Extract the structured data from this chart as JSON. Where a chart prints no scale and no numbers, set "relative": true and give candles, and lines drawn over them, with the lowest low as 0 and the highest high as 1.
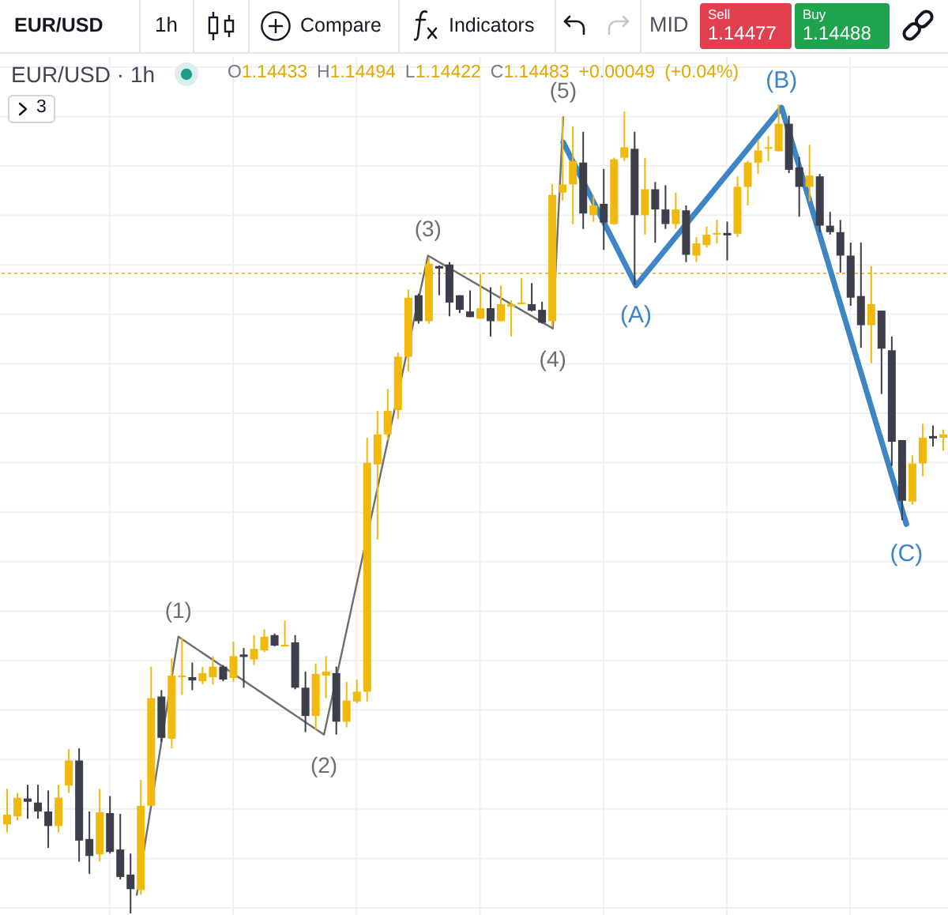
{
  "chart_data": {
    "type": "candlestick",
    "title": "EUR/USD · 1h",
    "subtitle": "O1.14433 H1.14494 L1.14422 C1.14483 +0.00049 (+0.04%)",
    "annotations": [
      "EUR/USD",
      "1h",
      "Compare",
      "Indicators",
      "MID",
      "Sell",
      "1.14477",
      "Buy",
      "1.14488",
      "3",
      {
        "text": "(1)",
        "y": 0.342
      },
      {
        "text": "(2)",
        "y": 0.221
      },
      {
        "text": "(3)",
        "y": 0.813
      },
      {
        "text": "(4)",
        "y": 0.723
      },
      {
        "text": "(5)",
        "y": 0.984
      },
      {
        "text": "(A)",
        "y": 0.776
      },
      {
        "text": "(B)",
        "y": 0.996
      },
      {
        "text": "(C)",
        "y": 0.481
      }
    ],
    "relative": true,
    "grid": true,
    "tick_labels": false,
    "categories": [
      null,
      null,
      null,
      null,
      null,
      null,
      null,
      null,
      null,
      null,
      null,
      null,
      null,
      null,
      null,
      null,
      null,
      null,
      null,
      null,
      null,
      null,
      null,
      null,
      null,
      null,
      null,
      null,
      null,
      null,
      null,
      null,
      null,
      null,
      null,
      null,
      null,
      null,
      null,
      null,
      null,
      null,
      null,
      null,
      null,
      null,
      null,
      null,
      null,
      null,
      null,
      null,
      null,
      null,
      null,
      null,
      null,
      null,
      null,
      null,
      null,
      null,
      null,
      null,
      null,
      null,
      null,
      null,
      null,
      null,
      null,
      null,
      null,
      null,
      null,
      null,
      null,
      null,
      null,
      null,
      null,
      null,
      null,
      null,
      null,
      null,
      null,
      null,
      null,
      null,
      null,
      null
    ],
    "ohlc": [
      [
        0.11,
        0.154,
        0.1,
        0.122
      ],
      [
        0.12,
        0.149,
        0.115,
        0.143
      ],
      [
        0.142,
        0.159,
        0.117,
        0.138
      ],
      [
        0.137,
        0.159,
        0.117,
        0.126
      ],
      [
        0.126,
        0.152,
        0.081,
        0.108
      ],
      [
        0.108,
        0.159,
        0.1,
        0.143
      ],
      [
        0.158,
        0.203,
        0.149,
        0.189
      ],
      [
        0.189,
        0.204,
        0.064,
        0.09
      ],
      [
        0.092,
        0.126,
        0.049,
        0.071
      ],
      [
        0.073,
        0.154,
        0.064,
        0.125
      ],
      [
        0.124,
        0.145,
        0.074,
        0.076
      ],
      [
        0.079,
        0.123,
        0.042,
        0.045
      ],
      [
        0.048,
        0.074,
        0,
        0.03
      ],
      [
        0.029,
        0.165,
        0.023,
        0.133
      ],
      [
        0.133,
        0.305,
        0.133,
        0.266
      ],
      [
        0.268,
        0.276,
        0.212,
        0.217
      ],
      [
        0.216,
        0.315,
        0.204,
        0.294
      ],
      [
        0.292,
        0.341,
        0.27,
        0.294
      ],
      [
        0.292,
        0.31,
        0.276,
        0.288
      ],
      [
        0.287,
        0.305,
        0.283,
        0.297
      ],
      [
        0.292,
        0.318,
        0.283,
        0.305
      ],
      [
        0.305,
        0.307,
        0.287,
        0.289
      ],
      [
        0.291,
        0.336,
        0.286,
        0.318
      ],
      [
        0.32,
        0.328,
        0.279,
        0.317
      ],
      [
        0.314,
        0.344,
        0.307,
        0.327
      ],
      [
        0.325,
        0.351,
        0.323,
        0.342
      ],
      [
        0.344,
        0.346,
        0.33,
        0.331
      ],
      [
        0.33,
        0.362,
        0.33,
        0.332
      ],
      [
        0.335,
        0.344,
        0.277,
        0.279
      ],
      [
        0.279,
        0.299,
        0.224,
        0.244
      ],
      [
        0.244,
        0.309,
        0.227,
        0.296
      ],
      [
        0.294,
        0.318,
        0.266,
        0.299
      ],
      [
        0.297,
        0.305,
        0.221,
        0.237
      ],
      [
        0.237,
        0.286,
        0.23,
        0.263
      ],
      [
        0.262,
        0.289,
        0.26,
        0.274
      ],
      [
        0.274,
        0.588,
        0.262,
        0.557
      ],
      [
        0.555,
        0.621,
        0.462,
        0.592
      ],
      [
        0.592,
        0.648,
        0.585,
        0.621
      ],
      [
        0.622,
        0.693,
        0.611,
        0.688
      ],
      [
        0.688,
        0.771,
        0.67,
        0.761
      ],
      [
        0.764,
        0.766,
        0.729,
        0.732
      ],
      [
        0.732,
        0.81,
        0.729,
        0.803
      ],
      [
        0.8,
        0.801,
        0.764,
        0.797
      ],
      [
        0.802,
        0.805,
        0.738,
        0.755
      ],
      [
        0.764,
        0.764,
        0.742,
        0.746
      ],
      [
        0.744,
        0.77,
        0.737,
        0.737
      ],
      [
        0.735,
        0.79,
        0.735,
        0.748
      ],
      [
        0.748,
        0.774,
        0.713,
        0.732
      ],
      [
        0.732,
        0.776,
        0.732,
        0.753
      ],
      [
        0.75,
        0.758,
        0.713,
        0.753
      ],
      [
        0.753,
        0.785,
        0.753,
        0.755
      ],
      [
        0.753,
        0.779,
        0.744,
        0.745
      ],
      [
        0.746,
        0.756,
        0.729,
        0.73
      ],
      [
        0.732,
        0.901,
        0.725,
        0.888
      ],
      [
        0.891,
        0.984,
        0.881,
        0.901
      ],
      [
        0.901,
        0.973,
        0.852,
        0.93
      ],
      [
        0.928,
        0.966,
        0.846,
        0.865
      ],
      [
        0.863,
        0.888,
        0.855,
        0.875
      ],
      [
        0.877,
        0.92,
        0.82,
        0.854
      ],
      [
        0.852,
        0.934,
        0.851,
        0.932
      ],
      [
        0.934,
        0.991,
        0.93,
        0.947
      ],
      [
        0.945,
        0.966,
        0.777,
        0.863
      ],
      [
        0.863,
        0.934,
        0.839,
        0.895
      ],
      [
        0.895,
        0.904,
        0.829,
        0.87
      ],
      [
        0.87,
        0.9,
        0.846,
        0.852
      ],
      [
        0.852,
        0.891,
        0.846,
        0.87
      ],
      [
        0.869,
        0.875,
        0.805,
        0.814
      ],
      [
        0.813,
        0.836,
        0.805,
        0.828
      ],
      [
        0.826,
        0.849,
        0.823,
        0.839
      ],
      [
        0.839,
        0.857,
        0.828,
        0.841
      ],
      [
        0.841,
        0.855,
        0.807,
        0.838
      ],
      [
        0.84,
        0.911,
        0.836,
        0.898
      ],
      [
        0.898,
        0.93,
        0.875,
        0.928
      ],
      [
        0.928,
        0.956,
        0.914,
        0.943
      ],
      [
        0.946,
        0.961,
        0.93,
        0.947
      ],
      [
        0.942,
        1,
        0.942,
        0.976
      ],
      [
        0.976,
        0.986,
        0.915,
        0.919
      ],
      [
        0.922,
        0.935,
        0.861,
        0.898
      ],
      [
        0.898,
        0.95,
        0.88,
        0.912
      ],
      [
        0.911,
        0.914,
        0.842,
        0.85
      ],
      [
        0.85,
        0.867,
        0.839,
        0.842
      ],
      [
        0.842,
        0.857,
        0.792,
        0.813
      ],
      [
        0.813,
        0.829,
        0.751,
        0.761
      ],
      [
        0.763,
        0.829,
        0.699,
        0.727
      ],
      [
        0.727,
        0.8,
        0.68,
        0.753
      ],
      [
        0.745,
        0.745,
        0.642,
        0.698
      ],
      [
        0.696,
        0.713,
        0.553,
        0.583
      ],
      [
        0.585,
        0.585,
        0.486,
        0.51
      ],
      [
        0.509,
        0.566,
        0.505,
        0.556
      ],
      [
        0.556,
        0.605,
        0.54,
        0.588
      ],
      [
        0.59,
        0.603,
        0.577,
        0.587
      ],
      [
        0.588,
        0.598,
        0.572,
        0.592
      ]
    ],
    "colors": [
      "#f0b90b",
      "#f0b90b",
      "#3c3f4a",
      "#3c3f4a",
      "#3c3f4a",
      "#f0b90b",
      "#f0b90b",
      "#3c3f4a",
      "#3c3f4a",
      "#f0b90b",
      "#3c3f4a",
      "#3c3f4a",
      "#3c3f4a",
      "#f0b90b",
      "#f0b90b",
      "#3c3f4a",
      "#f0b90b",
      "#f0b90b",
      "#3c3f4a",
      "#f0b90b",
      "#f0b90b",
      "#3c3f4a",
      "#f0b90b",
      "#3c3f4a",
      "#f0b90b",
      "#f0b90b",
      "#3c3f4a",
      "#f0b90b",
      "#3c3f4a",
      "#3c3f4a",
      "#f0b90b",
      "#f0b90b",
      "#3c3f4a",
      "#f0b90b",
      "#f0b90b",
      "#f0b90b",
      "#f0b90b",
      "#f0b90b",
      "#f0b90b",
      "#f0b90b",
      "#3c3f4a",
      "#f0b90b",
      "#3c3f4a",
      "#3c3f4a",
      "#3c3f4a",
      "#3c3f4a",
      "#f0b90b",
      "#3c3f4a",
      "#f0b90b",
      "#f0b90b",
      "#f0b90b",
      "#3c3f4a",
      "#3c3f4a",
      "#f0b90b",
      "#f0b90b",
      "#f0b90b",
      "#3c3f4a",
      "#f0b90b",
      "#3c3f4a",
      "#f0b90b",
      "#f0b90b",
      "#3c3f4a",
      "#f0b90b",
      "#3c3f4a",
      "#3c3f4a",
      "#f0b90b",
      "#3c3f4a",
      "#f0b90b",
      "#f0b90b",
      "#f0b90b",
      "#3c3f4a",
      "#f0b90b",
      "#f0b90b",
      "#f0b90b",
      "#f0b90b",
      "#f0b90b",
      "#3c3f4a",
      "#3c3f4a",
      "#f0b90b",
      "#3c3f4a",
      "#3c3f4a",
      "#3c3f4a",
      "#3c3f4a",
      "#3c3f4a",
      "#f0b90b",
      "#3c3f4a",
      "#3c3f4a",
      "#3c3f4a",
      "#f0b90b",
      "#f0b90b",
      "#3c3f4a",
      "#f0b90b"
    ],
    "series": [
      {
        "type": "line",
        "color": "#6e6e6e",
        "values": [
          null,
          null,
          null,
          null,
          null,
          null,
          null,
          null,
          null,
          null,
          null,
          null,
          null,
          0.023,
          null,
          null,
          null,
          0.342,
          null,
          null,
          null,
          null,
          null,
          null,
          null,
          null,
          null,
          null,
          null,
          null,
          null,
          0.221,
          null,
          null,
          null,
          null,
          null,
          null,
          null,
          null,
          null,
          0.813,
          null,
          null,
          null,
          null,
          null,
          null,
          null,
          null,
          null,
          null,
          null,
          0.723,
          0.984,
          null,
          null,
          null,
          null,
          null,
          null,
          null,
          null,
          null,
          null,
          null,
          null,
          null,
          null,
          null,
          null,
          null,
          null,
          null,
          null,
          null,
          null,
          null,
          null,
          null,
          null,
          null,
          null,
          null,
          null,
          null,
          null,
          null,
          null,
          null,
          null,
          null
        ]
      },
      {
        "type": "line",
        "color": "#3d85c6",
        "values": [
          null,
          null,
          null,
          null,
          null,
          null,
          null,
          null,
          null,
          null,
          null,
          null,
          null,
          null,
          null,
          null,
          null,
          null,
          null,
          null,
          null,
          null,
          null,
          null,
          null,
          null,
          null,
          null,
          null,
          null,
          null,
          null,
          null,
          null,
          null,
          null,
          null,
          null,
          null,
          null,
          null,
          null,
          null,
          null,
          null,
          null,
          null,
          null,
          null,
          null,
          null,
          null,
          null,
          null,
          0.953,
          null,
          null,
          null,
          null,
          null,
          null,
          0.776,
          null,
          null,
          null,
          null,
          null,
          null,
          null,
          null,
          null,
          null,
          null,
          null,
          null,
          0.996,
          null,
          null,
          null,
          null,
          null,
          null,
          null,
          null,
          null,
          null,
          null,
          0.481,
          null,
          null,
          null,
          null
        ]
      }
    ],
    "ref_lines": [
      {
        "axis": "y",
        "value": 0.791,
        "color": "#f0b94a",
        "line_style": "dotted"
      }
    ]
  }
}
